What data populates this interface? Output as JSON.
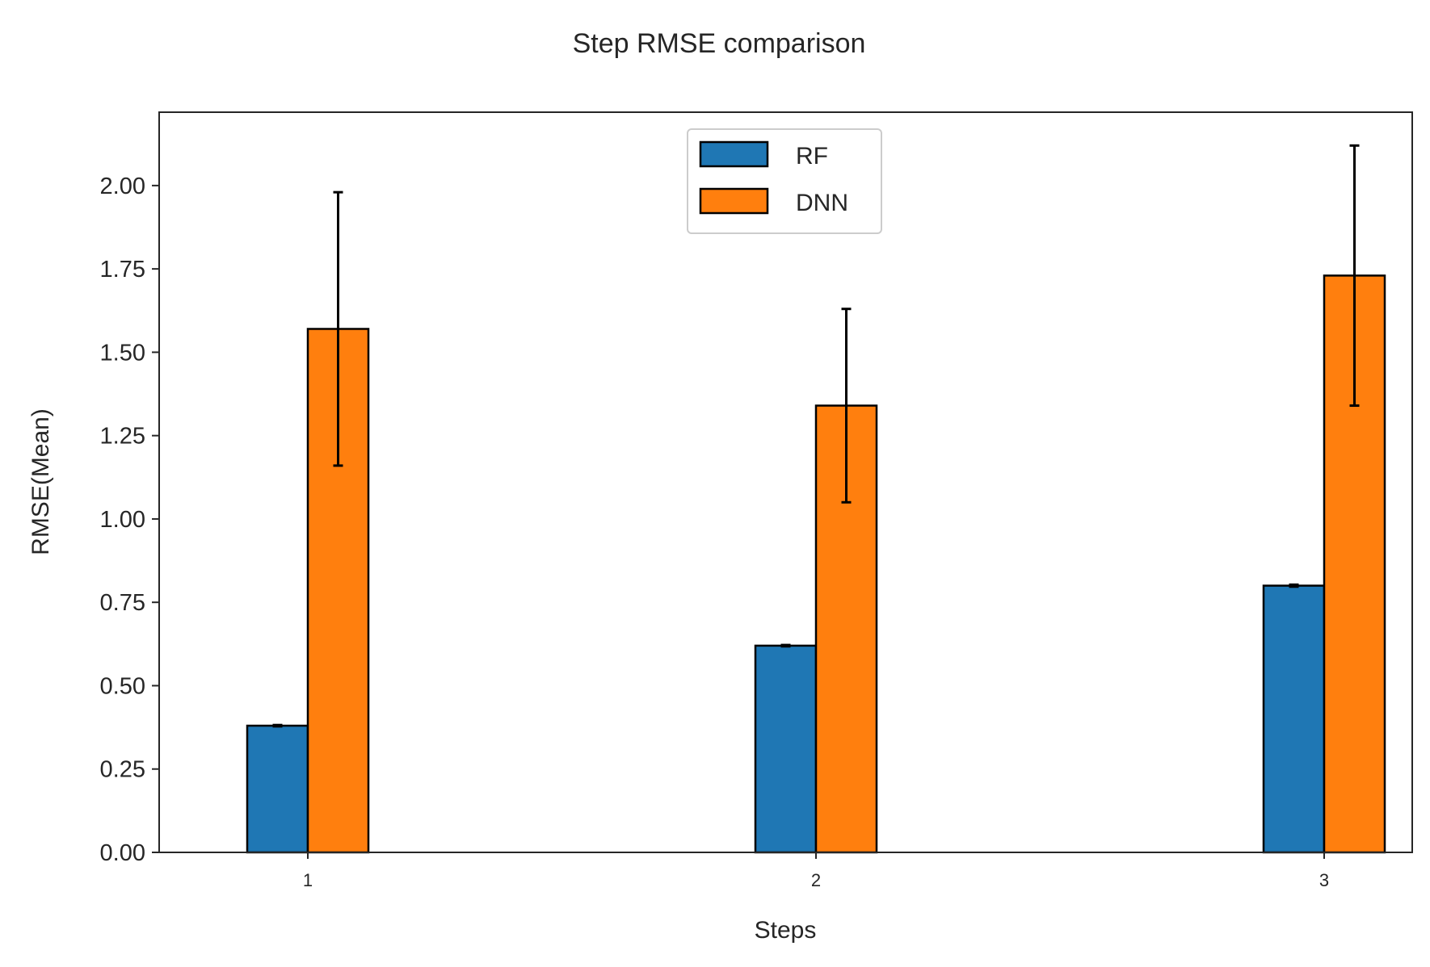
{
  "chart_data": {
    "type": "bar",
    "title": "Step RMSE comparison",
    "xlabel": "Steps",
    "ylabel": "RMSE(Mean)",
    "categories": [
      "1",
      "2",
      "3"
    ],
    "ylim": [
      0,
      2.22
    ],
    "yticks": [
      "0.00",
      "0.25",
      "0.50",
      "0.75",
      "1.00",
      "1.25",
      "1.50",
      "1.75",
      "2.00"
    ],
    "grid": false,
    "legend_position": "upper-center",
    "series": [
      {
        "name": "RF",
        "color": "#1f77b4",
        "values": [
          0.38,
          0.62,
          0.8
        ],
        "errors": [
          0.002,
          0.002,
          0.003
        ]
      },
      {
        "name": "DNN",
        "color": "#ff7f0e",
        "values": [
          1.57,
          1.34,
          1.73
        ],
        "errors": [
          0.41,
          0.29,
          0.39
        ]
      }
    ]
  }
}
